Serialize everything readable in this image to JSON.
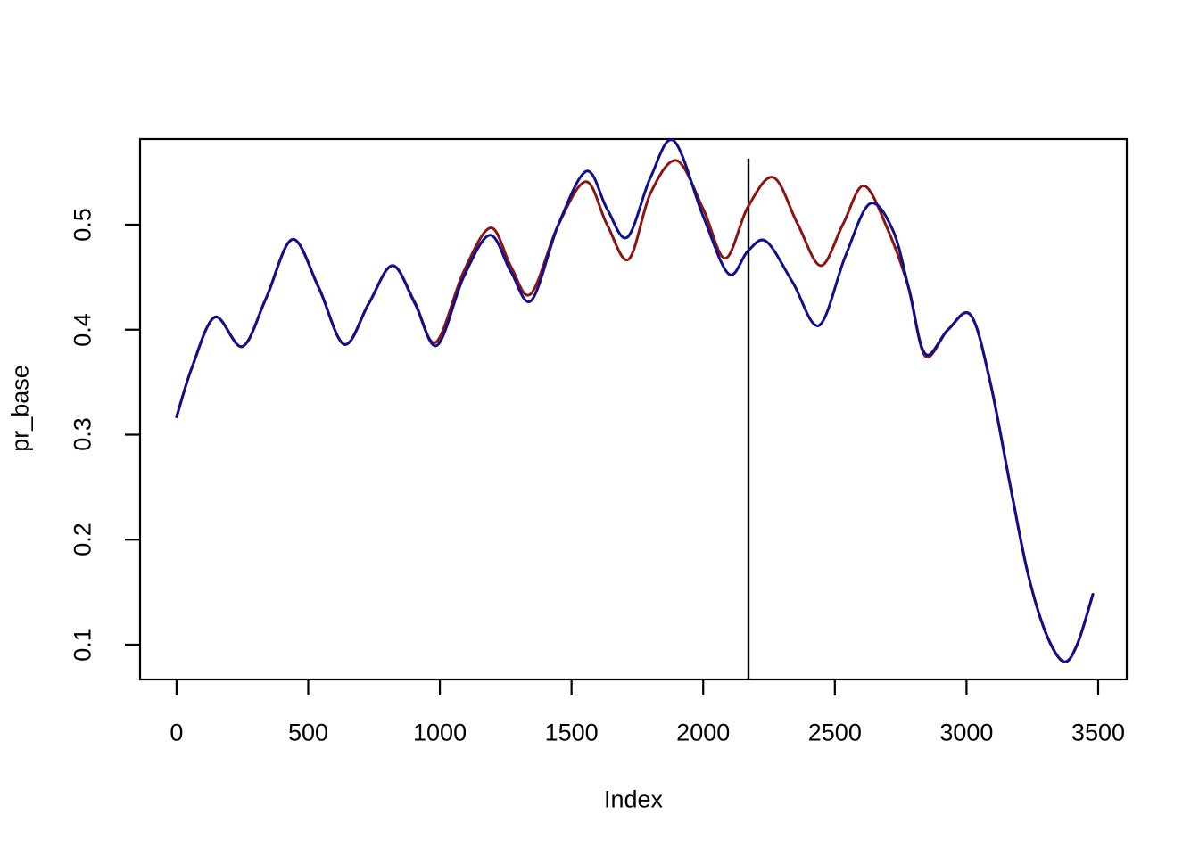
{
  "background_color": "#FFFFFF",
  "chart_data": {
    "type": "line",
    "xlabel": "Index",
    "ylabel": "pr_base",
    "axis_color": "#000000",
    "grid": false,
    "legend_position": "none",
    "frame": "box",
    "x_ticks": [
      0,
      500,
      1000,
      1500,
      2000,
      2500,
      3000,
      3500
    ],
    "y_ticks": [
      "0.1",
      "0.2",
      "0.3",
      "0.4",
      "0.5"
    ],
    "y_tick_values": [
      0.1,
      0.2,
      0.3,
      0.4,
      0.5
    ],
    "xlim": [
      -138.6,
      3608.5
    ],
    "ylim": [
      0.0669,
      0.5815
    ],
    "vline": {
      "x": 2172,
      "y_from": 0.0669,
      "y_to": 0.563,
      "color": "#000000",
      "width": 2.4
    },
    "series": [
      {
        "name": "dark-red-line",
        "color": "#8B1414",
        "width": 3,
        "x": [
          0,
          60,
          146,
          250,
          340,
          440,
          540,
          637,
          730,
          820,
          905,
          985,
          1090,
          1193,
          1270,
          1345,
          1450,
          1555,
          1635,
          1717,
          1800,
          1900,
          2000,
          2084,
          2170,
          2267,
          2360,
          2447,
          2530,
          2610,
          2700,
          2780,
          2843,
          2930,
          3016,
          3090,
          3168,
          3232,
          3300,
          3368,
          3420,
          3480
        ],
        "y": [
          0.317,
          0.365,
          0.412,
          0.384,
          0.43,
          0.486,
          0.44,
          0.386,
          0.425,
          0.461,
          0.426,
          0.388,
          0.455,
          0.497,
          0.46,
          0.434,
          0.5,
          0.541,
          0.5,
          0.467,
          0.53,
          0.561,
          0.515,
          0.468,
          0.517,
          0.545,
          0.5,
          0.461,
          0.5,
          0.537,
          0.496,
          0.44,
          0.375,
          0.4,
          0.414,
          0.35,
          0.249,
          0.169,
          0.112,
          0.084,
          0.1,
          0.148
        ]
      },
      {
        "name": "dark-blue-line",
        "color": "#10108C",
        "width": 3,
        "x": [
          0,
          60,
          146,
          250,
          340,
          440,
          540,
          637,
          730,
          820,
          905,
          989,
          1090,
          1190,
          1270,
          1348,
          1450,
          1557,
          1635,
          1712,
          1800,
          1888,
          2000,
          2097,
          2170,
          2240,
          2340,
          2440,
          2540,
          2633,
          2720,
          2780,
          2843,
          2930,
          3016,
          3090,
          3168,
          3232,
          3300,
          3368,
          3420,
          3480
        ],
        "y": [
          0.317,
          0.365,
          0.412,
          0.384,
          0.43,
          0.486,
          0.44,
          0.386,
          0.425,
          0.461,
          0.425,
          0.385,
          0.45,
          0.49,
          0.455,
          0.428,
          0.5,
          0.551,
          0.515,
          0.488,
          0.545,
          0.58,
          0.508,
          0.453,
          0.475,
          0.484,
          0.445,
          0.404,
          0.47,
          0.52,
          0.495,
          0.44,
          0.377,
          0.4,
          0.414,
          0.35,
          0.249,
          0.169,
          0.112,
          0.084,
          0.1,
          0.148
        ]
      }
    ]
  }
}
